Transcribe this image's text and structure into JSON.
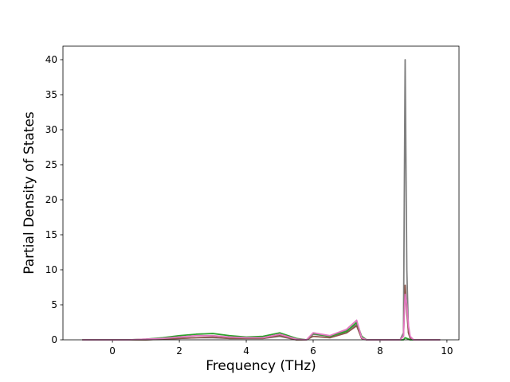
{
  "chart_data": {
    "type": "line",
    "x_label": "Frequency (THz)",
    "y_label": "Partial Density of States",
    "x": [
      -0.9,
      0.5,
      1,
      1.5,
      2,
      2.5,
      3,
      3.5,
      4,
      4.5,
      5,
      5.5,
      5.8,
      6,
      6.5,
      7,
      7.3,
      7.45,
      7.6,
      8.6,
      8.7,
      8.75,
      8.8,
      8.85,
      8.9,
      9,
      9.8
    ],
    "series": [
      {
        "color": "#7f7f7f",
        "values": [
          0,
          0,
          0,
          0.1,
          0.2,
          0.3,
          0.3,
          0.2,
          0.2,
          0.2,
          0.5,
          0,
          0,
          0.8,
          0.5,
          1.3,
          2.2,
          0.2,
          0,
          0,
          1.0,
          40,
          10,
          1.0,
          0.2,
          0,
          0
        ]
      },
      {
        "color": "#8c564b",
        "values": [
          0,
          0,
          0,
          0.1,
          0.2,
          0.3,
          0.4,
          0.2,
          0.2,
          0.2,
          0.6,
          0,
          0,
          0.5,
          0.3,
          1.0,
          2.0,
          0.2,
          0,
          0,
          0.5,
          7.8,
          4.0,
          1.0,
          0.3,
          0,
          0
        ]
      },
      {
        "color": "#2ca02c",
        "values": [
          0,
          0,
          0.1,
          0.3,
          0.6,
          0.8,
          0.9,
          0.6,
          0.4,
          0.5,
          1.0,
          0.2,
          0,
          0.9,
          0.5,
          1.2,
          2.5,
          0.5,
          0,
          0,
          0,
          0.3,
          0.2,
          0.1,
          0,
          0,
          0
        ]
      },
      {
        "color": "#e377c2",
        "values": [
          0,
          0,
          0.1,
          0.2,
          0.4,
          0.6,
          0.6,
          0.4,
          0.3,
          0.3,
          0.8,
          0.1,
          0,
          1.0,
          0.6,
          1.5,
          2.8,
          0.3,
          0,
          0,
          0.5,
          6.5,
          5.0,
          2.0,
          0.5,
          0,
          0
        ]
      }
    ],
    "xlim": [
      -1.48,
      10.36
    ],
    "ylim": [
      0,
      41.93
    ],
    "xticks": [
      0,
      2,
      4,
      6,
      8,
      10
    ],
    "yticks": [
      0,
      5,
      10,
      15,
      20,
      25,
      30,
      35,
      40
    ],
    "grid": false
  }
}
